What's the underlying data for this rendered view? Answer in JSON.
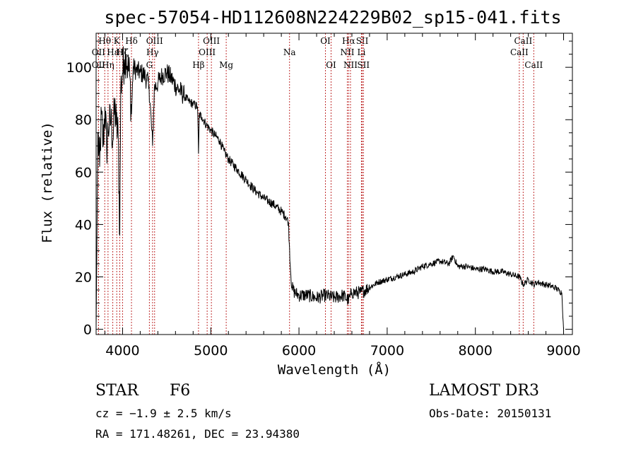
{
  "chart_data": {
    "type": "line",
    "title": "spec-57054-HD112608N224229B02_sp15-041.fits",
    "xlabel": "Wavelength (Å)",
    "ylabel": "Flux (relative)",
    "xlim": [
      3700,
      9100
    ],
    "ylim": [
      -2,
      113
    ],
    "xticks": [
      4000,
      5000,
      6000,
      7000,
      8000,
      9000
    ],
    "yticks": [
      0,
      20,
      40,
      60,
      80,
      100
    ],
    "series": [
      {
        "name": "flux",
        "x": [
          3700,
          3720,
          3740,
          3760,
          3780,
          3800,
          3820,
          3835,
          3850,
          3870,
          3890,
          3910,
          3930,
          3950,
          3968,
          3980,
          4000,
          4020,
          4040,
          4060,
          4080,
          4101,
          4120,
          4150,
          4200,
          4250,
          4300,
          4340,
          4360,
          4400,
          4450,
          4500,
          4550,
          4600,
          4650,
          4700,
          4750,
          4800,
          4850,
          4861,
          4870,
          4900,
          4950,
          5000,
          5050,
          5100,
          5150,
          5200,
          5300,
          5400,
          5500,
          5600,
          5700,
          5800,
          5850,
          5880,
          5890,
          5900,
          5920,
          5950,
          6000,
          6100,
          6200,
          6300,
          6400,
          6500,
          6563,
          6600,
          6700,
          6800,
          6900,
          7000,
          7100,
          7200,
          7300,
          7400,
          7500,
          7600,
          7700,
          7750,
          7800,
          7900,
          8000,
          8100,
          8200,
          8300,
          8400,
          8500,
          8542,
          8600,
          8662,
          8700,
          8800,
          8900,
          8980,
          9000
        ],
        "y": [
          0,
          75,
          62,
          82,
          70,
          85,
          68,
          77,
          78,
          80,
          72,
          85,
          78,
          74,
          36,
          92,
          98,
          103,
          105,
          100,
          97,
          82,
          100,
          99,
          98,
          97,
          93,
          70,
          92,
          94,
          97,
          98,
          96,
          93,
          91,
          89,
          87,
          86,
          85,
          67,
          82,
          81,
          78,
          76,
          74,
          72,
          68,
          65,
          61,
          57,
          53,
          50,
          48,
          45,
          43,
          41,
          33,
          25,
          16,
          14,
          13,
          13,
          12,
          13,
          12,
          13,
          11,
          14,
          14,
          16,
          18,
          19,
          20,
          21,
          22,
          24,
          25,
          26,
          25,
          28,
          24,
          24,
          23,
          23,
          22,
          22,
          21,
          20,
          17,
          19,
          17,
          18,
          17,
          16,
          14,
          0
        ]
      }
    ],
    "spectral_lines": [
      {
        "label": "Hθ",
        "wavelength": 3798,
        "row": 1
      },
      {
        "label": "OII",
        "wavelength": 3727,
        "row": 2
      },
      {
        "label": "Hη",
        "wavelength": 3835,
        "row": 3
      },
      {
        "label": "OII",
        "wavelength": 3727,
        "row": 3
      },
      {
        "label": "K",
        "wavelength": 3934,
        "row": 1
      },
      {
        "label": "Hε",
        "wavelength": 3889,
        "row": 2
      },
      {
        "label": "H",
        "wavelength": 3968,
        "row": 2
      },
      {
        "label": "Hδ",
        "wavelength": 4101,
        "row": 1
      },
      {
        "label": "Hζ",
        "wavelength": 4000,
        "row": 2
      },
      {
        "label": "OIII",
        "wavelength": 4363,
        "row": 1
      },
      {
        "label": "Hγ",
        "wavelength": 4340,
        "row": 2
      },
      {
        "label": "G",
        "wavelength": 4304,
        "row": 3
      },
      {
        "label": "OIII",
        "wavelength": 5007,
        "row": 1
      },
      {
        "label": "OIII",
        "wavelength": 4959,
        "row": 2
      },
      {
        "label": "Hβ",
        "wavelength": 4861,
        "row": 3
      },
      {
        "label": "Mg",
        "wavelength": 5175,
        "row": 3
      },
      {
        "label": "Na",
        "wavelength": 5893,
        "row": 2
      },
      {
        "label": "OI",
        "wavelength": 6300,
        "row": 1
      },
      {
        "label": "OI",
        "wavelength": 6364,
        "row": 3
      },
      {
        "label": "Hα",
        "wavelength": 6563,
        "row": 1
      },
      {
        "label": "NII",
        "wavelength": 6548,
        "row": 2
      },
      {
        "label": "NII",
        "wavelength": 6584,
        "row": 3
      },
      {
        "label": "SII",
        "wavelength": 6717,
        "row": 1
      },
      {
        "label": "Li",
        "wavelength": 6708,
        "row": 2
      },
      {
        "label": "SII",
        "wavelength": 6731,
        "row": 3
      },
      {
        "label": "CaII",
        "wavelength": 8542,
        "row": 1
      },
      {
        "label": "CaII",
        "wavelength": 8498,
        "row": 2
      },
      {
        "label": "CaII",
        "wavelength": 8662,
        "row": 3
      }
    ]
  },
  "info": {
    "object_type": "STAR",
    "subclass": "F6",
    "survey": "LAMOST DR3",
    "cz": "cz = −1.9 ± 2.5 km/s",
    "obs_date": "Obs-Date: 20150131",
    "coords": "RA = 171.48261, DEC =  23.94380"
  },
  "colors": {
    "line_marker": "#c03030",
    "spectrum": "#000000"
  }
}
